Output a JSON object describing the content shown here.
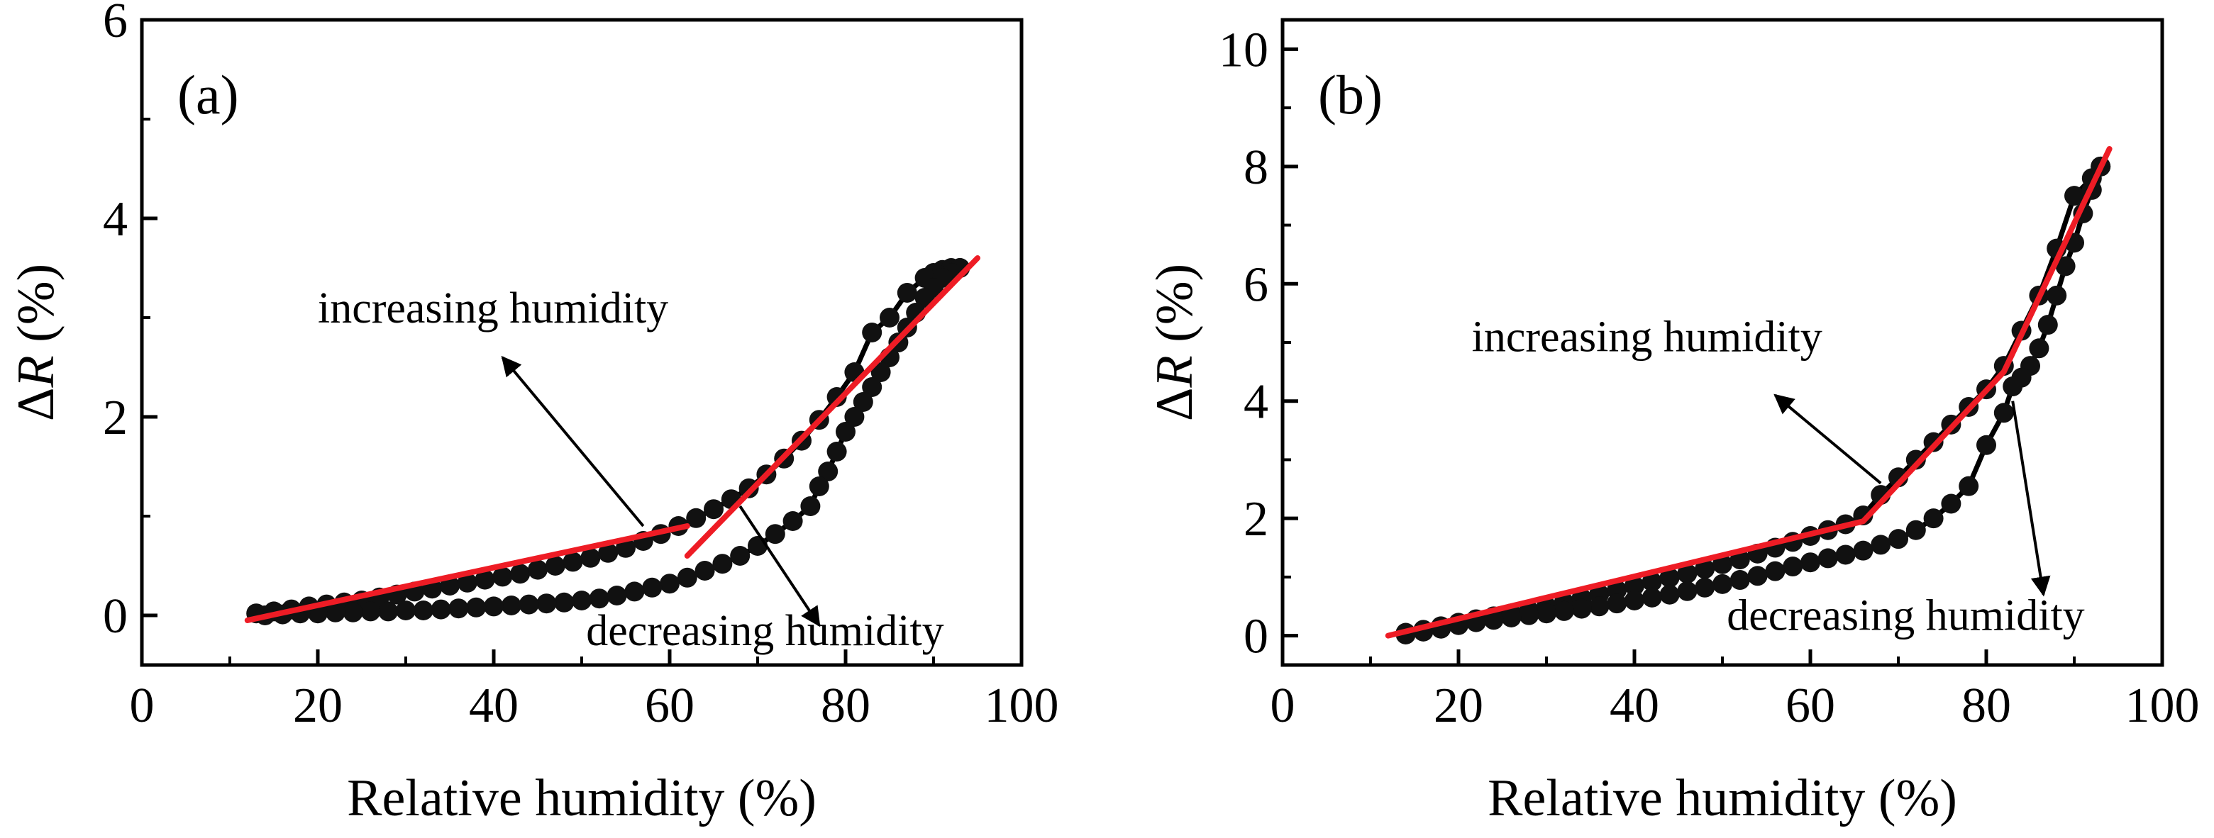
{
  "colors": {
    "marker": "#111111",
    "data_line": "#000000",
    "fit_line": "#ee1c25",
    "axis": "#000000",
    "background": "#ffffff"
  },
  "chart_data": [
    {
      "type": "line",
      "panel_label": "(a)",
      "xlabel": "Relative humidity (%)",
      "ylabel_delta": "Δ",
      "ylabel_var": "R",
      "ylabel_rest": " (%)",
      "xlim": [
        0,
        100
      ],
      "ylim": [
        -0.5,
        6
      ],
      "x_ticks": [
        0,
        20,
        40,
        60,
        80,
        100
      ],
      "x_tick_labels": [
        "0",
        "20",
        "40",
        "60",
        "80",
        "100"
      ],
      "y_ticks": [
        0,
        2,
        4,
        6
      ],
      "y_tick_labels": [
        "0",
        "2",
        "4",
        "6"
      ],
      "minor_x_ticks": [
        10,
        30,
        50,
        70,
        90
      ],
      "minor_y_ticks": [
        1,
        3,
        5
      ],
      "series": [
        {
          "name": "increasing humidity",
          "x": [
            13,
            15,
            17,
            19,
            21,
            23,
            25,
            27,
            29,
            31,
            33,
            35,
            37,
            39,
            41,
            43,
            45,
            47,
            49,
            51,
            53,
            55,
            57,
            59,
            61,
            63,
            65,
            67,
            69,
            71,
            73,
            75,
            77,
            79,
            81,
            83,
            85,
            87,
            89,
            90,
            91,
            92,
            93
          ],
          "y": [
            0.02,
            0.04,
            0.06,
            0.09,
            0.11,
            0.13,
            0.15,
            0.18,
            0.21,
            0.24,
            0.27,
            0.3,
            0.33,
            0.36,
            0.39,
            0.42,
            0.46,
            0.5,
            0.54,
            0.58,
            0.63,
            0.68,
            0.75,
            0.82,
            0.9,
            0.98,
            1.07,
            1.17,
            1.28,
            1.42,
            1.58,
            1.76,
            1.97,
            2.2,
            2.45,
            2.85,
            3.0,
            3.25,
            3.4,
            3.45,
            3.48,
            3.5,
            3.5
          ]
        },
        {
          "name": "decreasing humidity",
          "x": [
            93,
            92,
            91,
            90,
            89,
            88,
            87,
            86,
            85,
            84,
            83,
            82,
            81,
            80,
            79,
            78,
            77,
            76,
            74,
            72,
            70,
            68,
            66,
            64,
            62,
            60,
            58,
            56,
            54,
            52,
            50,
            48,
            46,
            44,
            42,
            40,
            38,
            36,
            34,
            32,
            30,
            28,
            26,
            24,
            22,
            20,
            18,
            16,
            14
          ],
          "y": [
            3.5,
            3.45,
            3.4,
            3.3,
            3.2,
            3.05,
            2.9,
            2.75,
            2.6,
            2.45,
            2.3,
            2.15,
            2.0,
            1.85,
            1.65,
            1.45,
            1.3,
            1.1,
            0.95,
            0.82,
            0.7,
            0.6,
            0.52,
            0.45,
            0.38,
            0.32,
            0.28,
            0.24,
            0.2,
            0.17,
            0.15,
            0.13,
            0.12,
            0.11,
            0.1,
            0.09,
            0.08,
            0.07,
            0.06,
            0.05,
            0.05,
            0.04,
            0.04,
            0.03,
            0.03,
            0.02,
            0.02,
            0.01,
            0.0
          ]
        }
      ],
      "fit_lines": [
        {
          "x": [
            12,
            62
          ],
          "y": [
            -0.05,
            0.9
          ]
        },
        {
          "x": [
            62,
            95
          ],
          "y": [
            0.6,
            3.6
          ]
        }
      ],
      "annotations": [
        {
          "text": "increasing humidity",
          "x": 20,
          "y": 2.95
        },
        {
          "text": "decreasing humidity",
          "x": 50.5,
          "y": -0.3
        }
      ],
      "arrows": [
        {
          "from": [
            57,
            0.9
          ],
          "to": [
            41,
            2.6
          ]
        },
        {
          "from": [
            68,
            1.1
          ],
          "to": [
            77,
            -0.1
          ]
        }
      ]
    },
    {
      "type": "line",
      "panel_label": "(b)",
      "xlabel": "Relative humidity (%)",
      "ylabel_delta": "Δ",
      "ylabel_var": "R",
      "ylabel_rest": " (%)",
      "xlim": [
        0,
        100
      ],
      "ylim": [
        -0.5,
        10.5
      ],
      "x_ticks": [
        0,
        20,
        40,
        60,
        80,
        100
      ],
      "x_tick_labels": [
        "0",
        "20",
        "40",
        "60",
        "80",
        "100"
      ],
      "y_ticks": [
        0,
        2,
        4,
        6,
        8,
        10
      ],
      "y_tick_labels": [
        "0",
        "2",
        "4",
        "6",
        "8",
        "10"
      ],
      "minor_x_ticks": [
        10,
        30,
        50,
        70,
        90
      ],
      "minor_y_ticks": [
        1,
        3,
        5,
        7,
        9
      ],
      "series": [
        {
          "name": "increasing humidity",
          "x": [
            14,
            16,
            18,
            20,
            22,
            24,
            26,
            28,
            30,
            32,
            34,
            36,
            38,
            40,
            42,
            44,
            46,
            48,
            50,
            52,
            54,
            56,
            58,
            60,
            62,
            64,
            66,
            68,
            70,
            72,
            74,
            76,
            78,
            80,
            82,
            84,
            86,
            88,
            90,
            92,
            93
          ],
          "y": [
            0.05,
            0.1,
            0.16,
            0.22,
            0.28,
            0.33,
            0.38,
            0.43,
            0.5,
            0.57,
            0.64,
            0.71,
            0.78,
            0.85,
            0.92,
            0.99,
            1.06,
            1.14,
            1.22,
            1.3,
            1.4,
            1.5,
            1.6,
            1.7,
            1.8,
            1.9,
            2.05,
            2.4,
            2.7,
            3.0,
            3.3,
            3.6,
            3.9,
            4.2,
            4.6,
            5.2,
            5.8,
            6.6,
            7.5,
            7.8,
            8.0
          ]
        },
        {
          "name": "decreasing humidity",
          "x": [
            93,
            92,
            91,
            90,
            89,
            88,
            87,
            86,
            85,
            84,
            83,
            82,
            80,
            78,
            76,
            74,
            72,
            70,
            68,
            66,
            64,
            62,
            60,
            58,
            56,
            54,
            52,
            50,
            48,
            46,
            44,
            42,
            40,
            38,
            36,
            34,
            32,
            30,
            28,
            26,
            24,
            22,
            20,
            18,
            16,
            14
          ],
          "y": [
            8.0,
            7.6,
            7.2,
            6.7,
            6.3,
            5.8,
            5.3,
            4.9,
            4.6,
            4.4,
            4.25,
            3.8,
            3.25,
            2.55,
            2.25,
            2.0,
            1.8,
            1.65,
            1.55,
            1.45,
            1.38,
            1.32,
            1.25,
            1.18,
            1.1,
            1.02,
            0.95,
            0.88,
            0.82,
            0.76,
            0.7,
            0.65,
            0.6,
            0.55,
            0.5,
            0.46,
            0.42,
            0.38,
            0.35,
            0.31,
            0.27,
            0.23,
            0.18,
            0.12,
            0.07,
            0.02
          ]
        }
      ],
      "fit_lines": [
        {
          "x": [
            12,
            66,
            82,
            94
          ],
          "y": [
            0.0,
            1.95,
            4.5,
            8.3
          ]
        }
      ],
      "annotations": [
        {
          "text": "increasing humidity",
          "x": 21.5,
          "y": 4.85
        },
        {
          "text": "decreasing humidity",
          "x": 50.5,
          "y": 0.1
        }
      ],
      "arrows": [
        {
          "from": [
            68,
            2.6
          ],
          "to": [
            56,
            4.1
          ]
        },
        {
          "from": [
            83,
            4.0
          ],
          "to": [
            86.5,
            0.7
          ]
        }
      ]
    }
  ]
}
